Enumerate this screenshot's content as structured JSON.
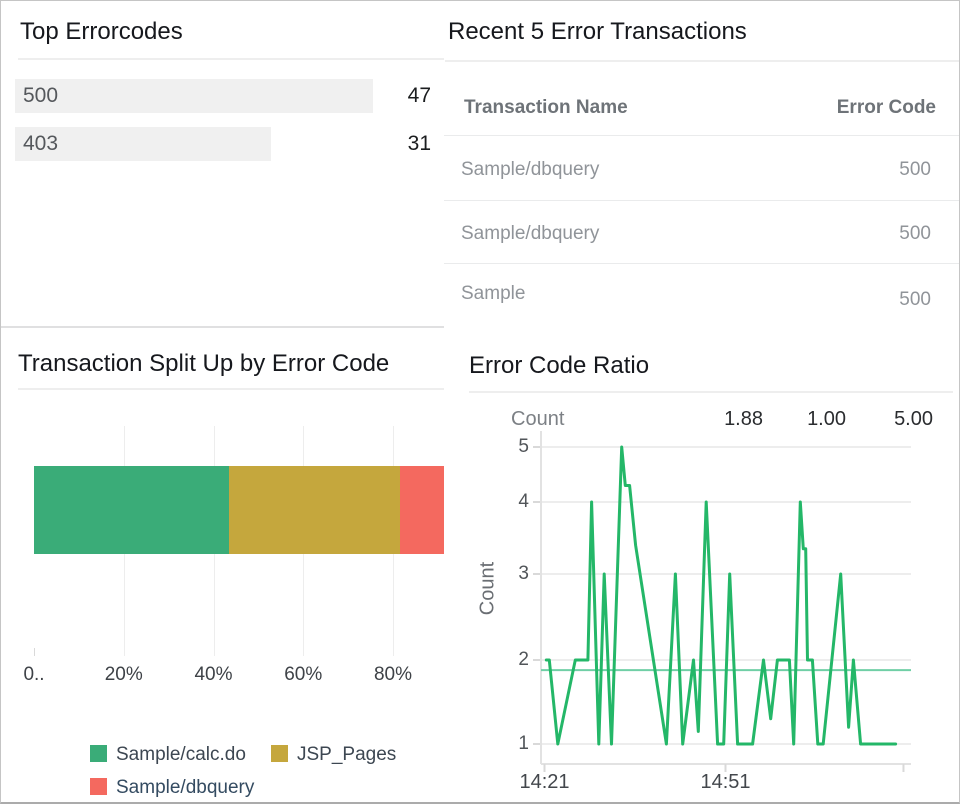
{
  "panels": {
    "top_errorcodes": {
      "title": "Top Errorcodes",
      "bars": [
        {
          "label": "500",
          "value": "47"
        },
        {
          "label": "403",
          "value": "31"
        }
      ]
    },
    "recent_transactions": {
      "title": "Recent 5 Error Transactions",
      "columns": [
        "Transaction Name",
        "Error Code"
      ],
      "rows": [
        {
          "name": "Sample/dbquery",
          "code": "500"
        },
        {
          "name": "Sample/dbquery",
          "code": "500"
        },
        {
          "name": "Sample",
          "code": "500"
        }
      ]
    },
    "split_up": {
      "title": "Transaction Split Up by Error Code"
    },
    "error_ratio": {
      "title": "Error Code Ratio",
      "series_label": "Count",
      "stat_values": [
        "1.88",
        "1.00",
        "5.00"
      ]
    }
  },
  "chart_data": [
    {
      "type": "bar",
      "title": "Transaction Split Up by Error Code",
      "orientation": "horizontal_stacked",
      "units": "percent",
      "series": [
        {
          "name": "Sample/calc.do",
          "value_pct": 43.4,
          "color": "#3aac78"
        },
        {
          "name": "JSP_Pages",
          "value_pct": 38.1,
          "color": "#c5a73d"
        },
        {
          "name": "Sample/dbquery",
          "value_pct": 18.5,
          "color": "#f4695f"
        }
      ],
      "x_tick_labels": [
        "0..",
        "20%",
        "40%",
        "60%",
        "80%"
      ],
      "x_tick_pct": [
        0,
        20,
        40,
        60,
        80
      ],
      "legend_position": "bottom",
      "legend_text_colors": [
        "#3d4752",
        "#3d4752",
        "#344b61"
      ]
    },
    {
      "type": "line",
      "title": "Error Code Ratio",
      "ylabel": "Count",
      "color": "#24b768",
      "average_line": {
        "value": 1.88,
        "color": "#70cfa6"
      },
      "stats": {
        "avg": "1.88",
        "min": "1.00",
        "max": "5.00"
      },
      "y_ticks": [
        1,
        2,
        3,
        4,
        5
      ],
      "ylim": [
        1,
        5
      ],
      "grid": true,
      "x_ticks": [
        {
          "t_min": 0,
          "label": "14:21"
        },
        {
          "t_min": 30,
          "label": "14:51"
        },
        {
          "t_min": 59.5,
          "label": ""
        }
      ],
      "points_t_min": [
        0.3,
        0.8,
        2.2,
        5.1,
        7.2,
        7.8,
        9.0,
        9.9,
        11.1,
        12.8,
        13.4,
        14.1,
        15.1,
        20.2,
        21.7,
        22.9,
        24.7,
        25.5,
        26.8,
        28.7,
        29.7,
        30.7,
        32.0,
        34.5,
        36.3,
        37.5,
        38.6,
        40.6,
        41.3,
        42.4,
        42.9,
        43.3,
        43.6,
        44.4,
        45.3,
        46.2,
        49.1,
        50.4,
        51.2,
        52.4,
        53.2,
        58.2
      ],
      "points_value": [
        2,
        2,
        1,
        2,
        2,
        4,
        1,
        3,
        1,
        5,
        4.3,
        4.3,
        3.4,
        1,
        3,
        1,
        2,
        1.15,
        4,
        1,
        1,
        3,
        1,
        1,
        2,
        1.3,
        2,
        2,
        1,
        4,
        3.35,
        3.35,
        2,
        2,
        1,
        1,
        3,
        1.2,
        2,
        1,
        1,
        1
      ]
    }
  ]
}
